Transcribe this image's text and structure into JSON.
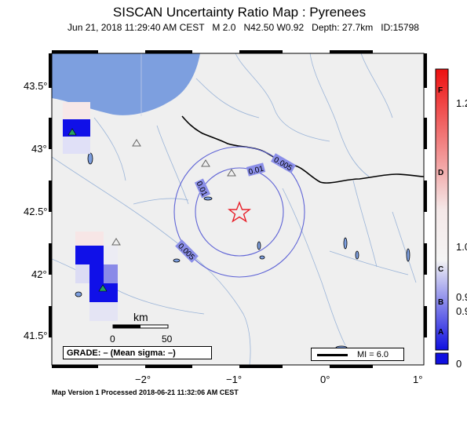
{
  "title": "SISCAN Uncertainty Ratio Map : Pyrenees",
  "subtitle": {
    "datetime": "Jun 21, 2018 11:29:40 AM CEST",
    "magnitude": "M 2.0",
    "location": "N42.50 W0.92",
    "depth": "Depth: 27.7km",
    "id": "ID:15798"
  },
  "map": {
    "y_axis_labels": [
      "43.5°",
      "43°",
      "42.5°",
      "42°",
      "41.5°"
    ],
    "x_axis_labels": [
      "−2°",
      "−1°",
      "0°",
      "1°"
    ],
    "epicenter": {
      "lat": 42.5,
      "lon": -0.92,
      "symbol": "star-icon",
      "color": "#e8202a"
    },
    "contour_labels": [
      "0.005",
      "0.01",
      "0.01",
      "0.005"
    ],
    "colors": {
      "land": "#efefef",
      "sea": "#7d9fdf",
      "rivers": "#9ab4d8",
      "border": "#000000",
      "contour": "#5f64d6"
    },
    "scale": {
      "unit": "km",
      "ticks": [
        "0",
        "50"
      ]
    },
    "grade": "GRADE: – (Mean sigma: –)",
    "mi_legend": "MI = 6.0",
    "stations": [
      {
        "type": "seismic-station",
        "filled": true,
        "color": "#28a060"
      },
      {
        "type": "seismic-station",
        "filled": true,
        "color": "#28a060"
      },
      {
        "type": "seismic-station",
        "filled": false
      },
      {
        "type": "seismic-station",
        "filled": false
      },
      {
        "type": "seismic-station",
        "filled": false
      },
      {
        "type": "seismic-station",
        "filled": false
      }
    ]
  },
  "colorbar": {
    "letters": [
      "F",
      "D",
      "C",
      "B",
      "A"
    ],
    "ticks": [
      "1.2",
      "1.0",
      "0.9",
      "0.9",
      "0"
    ],
    "colors": {
      "top": "#ee1010",
      "mid": "#f4f4f4",
      "bottom": "#1010e0"
    }
  },
  "footer": "Map Version 1 Processed 2018-06-21 11:32:06 AM CEST"
}
